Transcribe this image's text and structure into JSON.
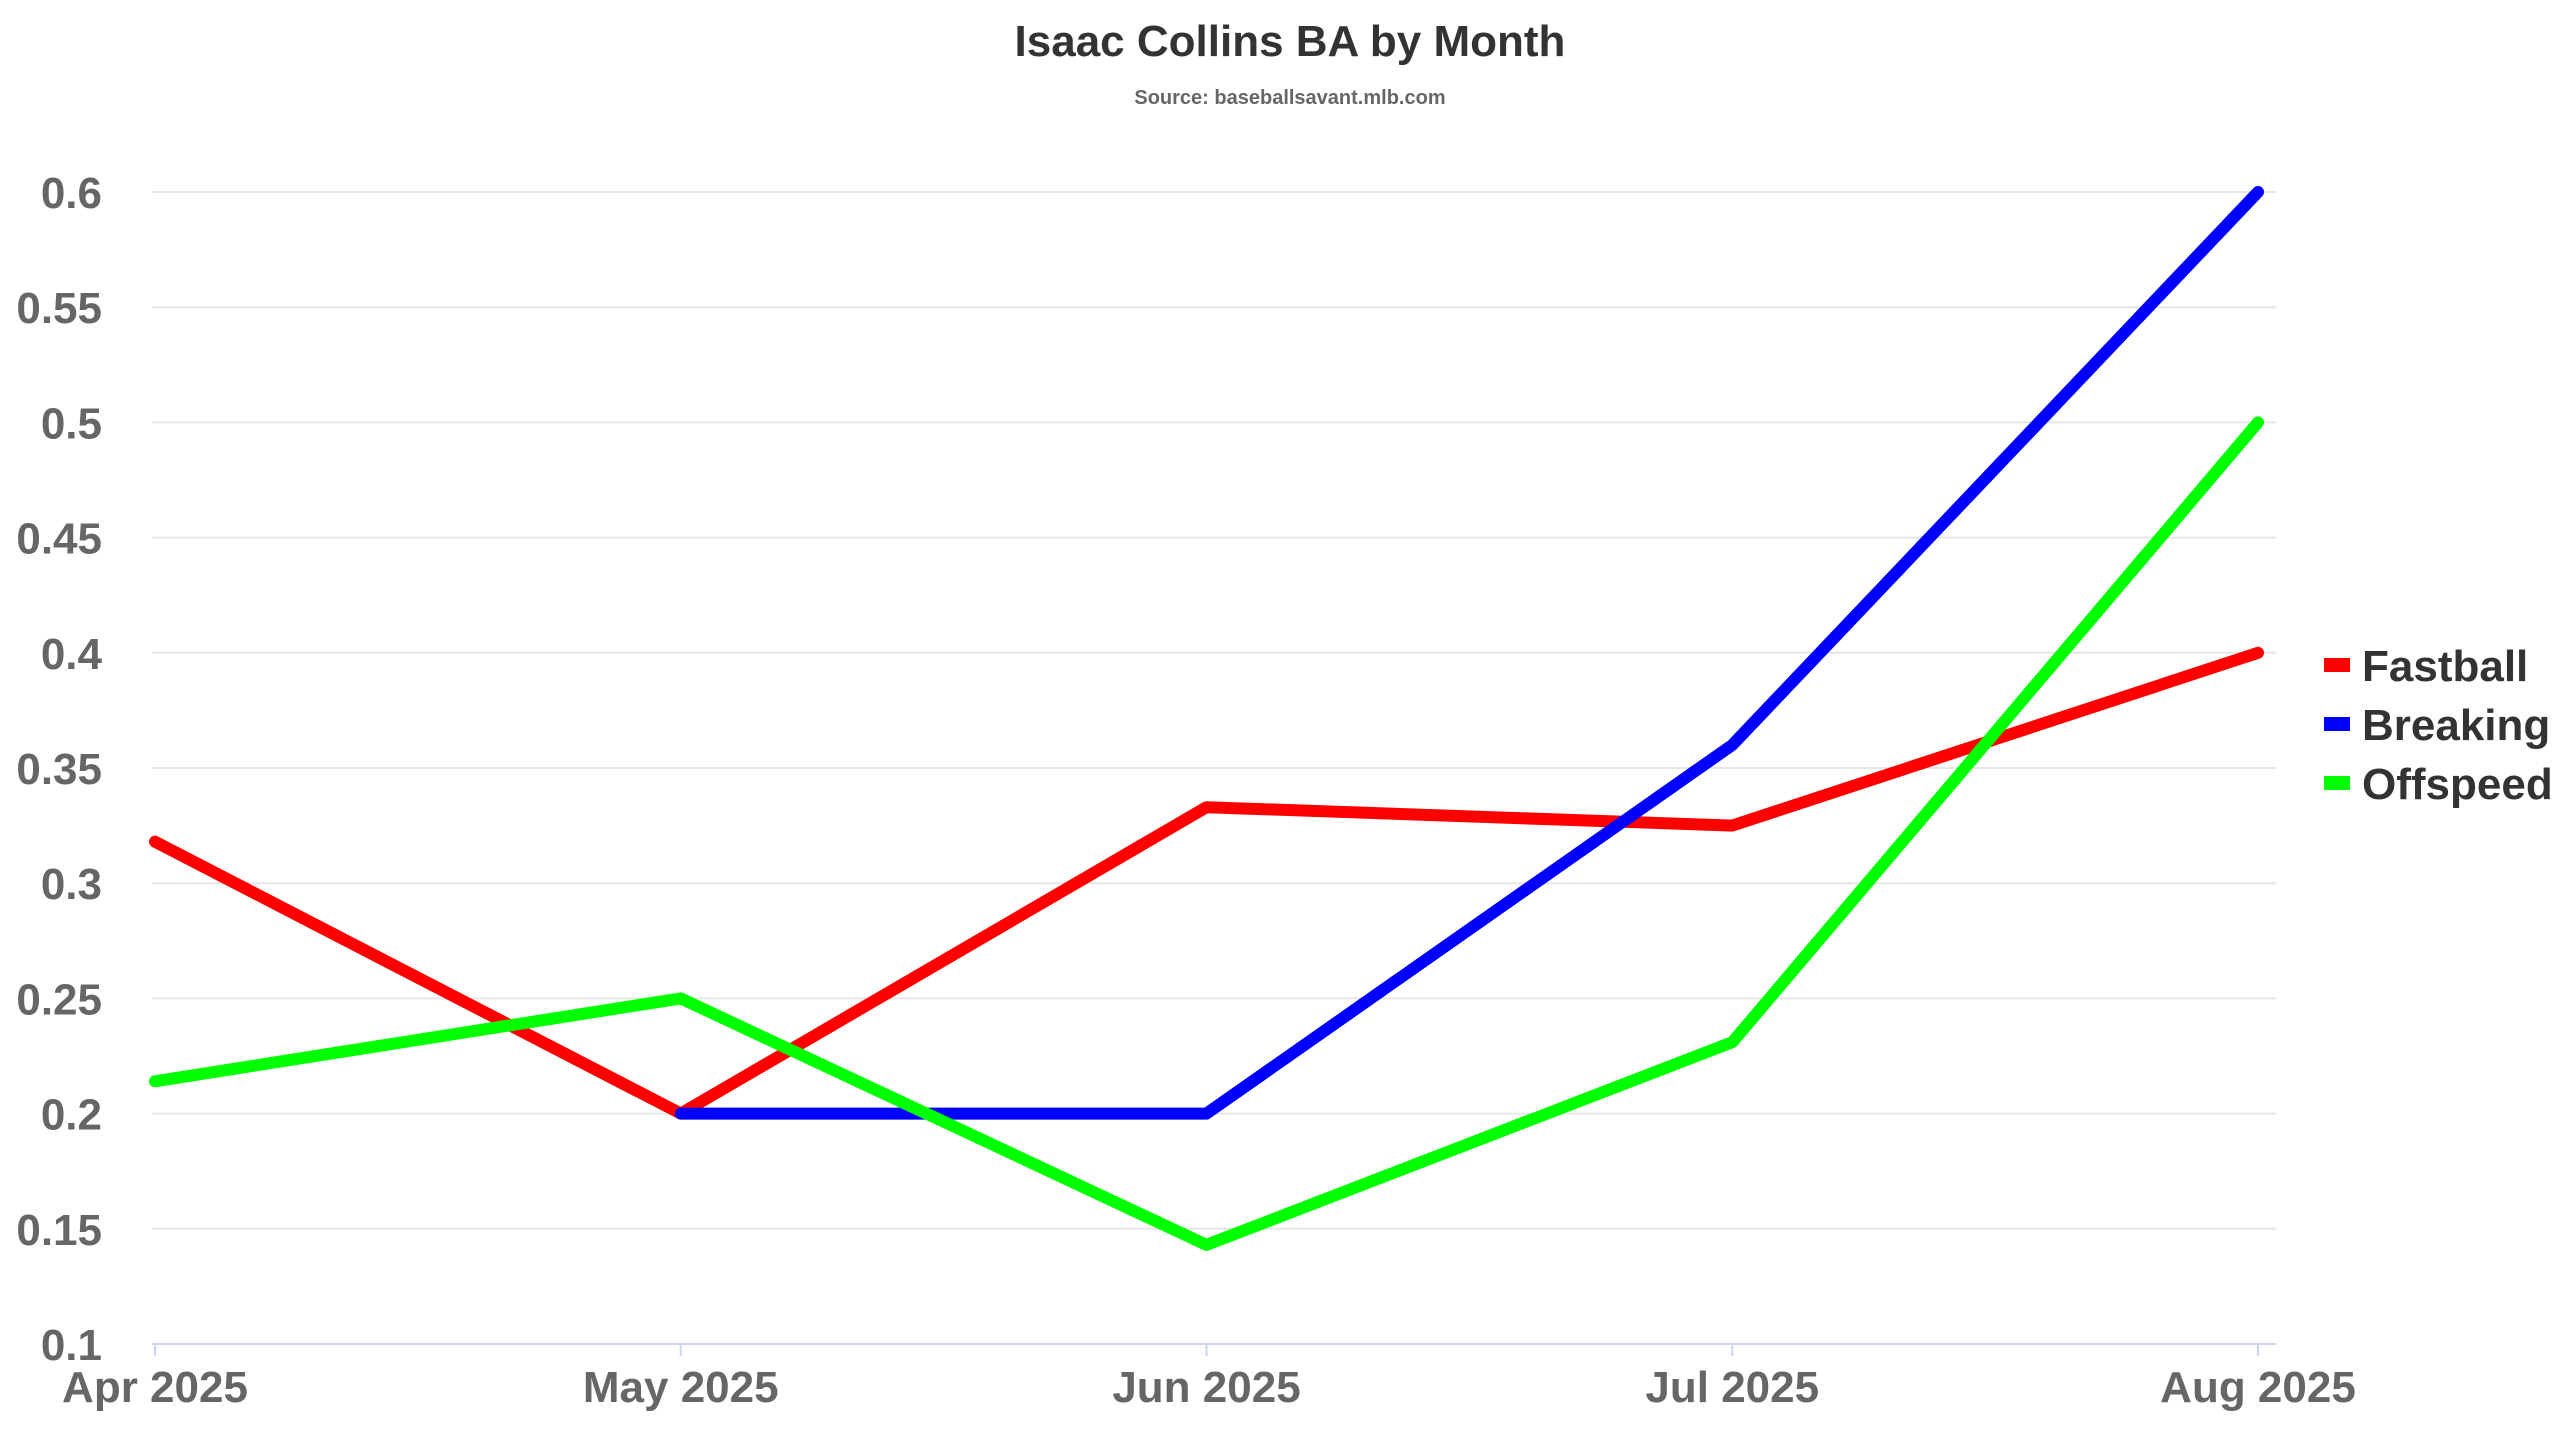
{
  "chart_data": {
    "type": "line",
    "title": "Isaac Collins BA by Month",
    "subtitle": "Source: baseballsavant.mlb.com",
    "xlabel": "",
    "ylabel": "",
    "categories": [
      "Apr 2025",
      "May 2025",
      "Jun 2025",
      "Jul 2025",
      "Aug 2025"
    ],
    "ylim": [
      0.1,
      0.6
    ],
    "yticks": [
      "0.1",
      "0.15",
      "0.2",
      "0.25",
      "0.3",
      "0.35",
      "0.4",
      "0.45",
      "0.5",
      "0.55",
      "0.6"
    ],
    "grid": true,
    "legend_position": "right",
    "series": [
      {
        "name": "Fastball",
        "color": "#ff0000",
        "values": [
          0.318,
          0.2,
          0.333,
          0.325,
          0.4
        ]
      },
      {
        "name": "Breaking",
        "color": "#0000ff",
        "values": [
          null,
          0.2,
          0.2,
          0.36,
          0.6
        ]
      },
      {
        "name": "Offspeed",
        "color": "#00ff00",
        "values": [
          0.214,
          0.25,
          0.143,
          0.231,
          0.5
        ]
      }
    ]
  }
}
